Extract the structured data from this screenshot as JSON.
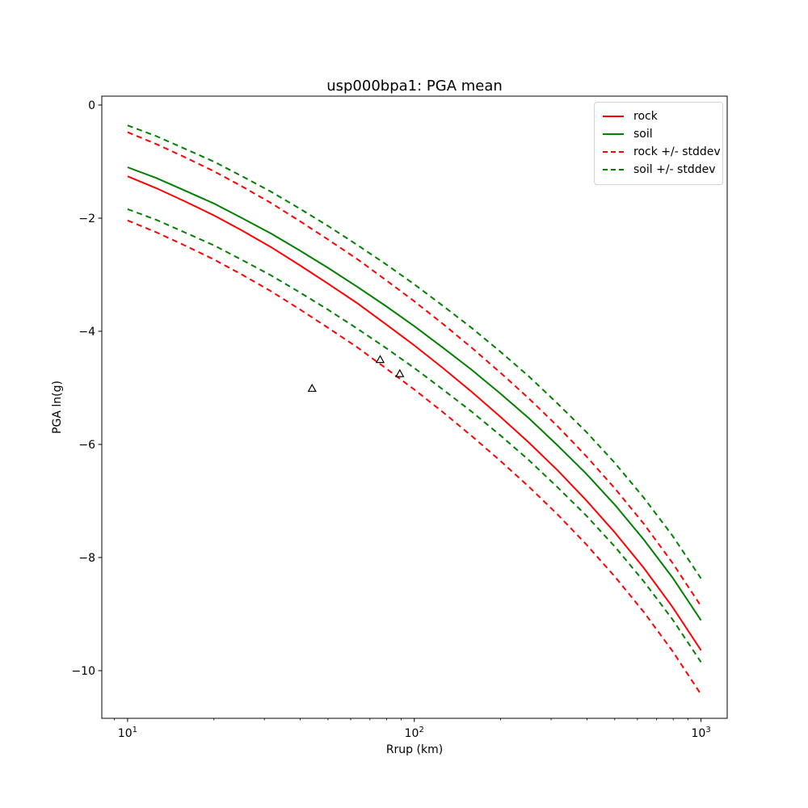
{
  "figure": {
    "title": "usp000bpa1: PGA mean",
    "xlabel": "Rrup (km)",
    "ylabel": "PGA ln(g)",
    "background": "#ffffff"
  },
  "chart_data": {
    "type": "line",
    "xscale": "log",
    "grid": false,
    "xlim": [
      8.13,
      1234
    ],
    "ylim": [
      0.157,
      -10.843
    ],
    "xticks": [
      10,
      100,
      1000
    ],
    "yticks": [
      0,
      -2,
      -4,
      -6,
      -8,
      -10
    ],
    "x": [
      10,
      12.6,
      15.8,
      20,
      25.1,
      31.6,
      39.8,
      50.1,
      63.1,
      79.4,
      100,
      125.9,
      158.5,
      199.5,
      251.2,
      316.2,
      398.1,
      501.2,
      631,
      794.3,
      1000
    ],
    "series": [
      {
        "name": "rock",
        "color": "#ff0000",
        "style": "solid",
        "values": [
          -1.26,
          -1.47,
          -1.7,
          -1.95,
          -2.22,
          -2.51,
          -2.83,
          -3.16,
          -3.5,
          -3.87,
          -4.25,
          -4.65,
          -5.07,
          -5.51,
          -5.97,
          -6.46,
          -6.99,
          -7.56,
          -8.18,
          -8.87,
          -9.64
        ]
      },
      {
        "name": "soil",
        "color": "#008000",
        "style": "solid",
        "values": [
          -1.1,
          -1.29,
          -1.51,
          -1.74,
          -2.0,
          -2.27,
          -2.57,
          -2.88,
          -3.21,
          -3.55,
          -3.91,
          -4.29,
          -4.68,
          -5.1,
          -5.54,
          -6.02,
          -6.52,
          -7.07,
          -7.68,
          -8.35,
          -9.11
        ]
      },
      {
        "name": "rock + stddev",
        "color": "#ff0000",
        "style": "dashed",
        "values": [
          -0.48,
          -0.69,
          -0.92,
          -1.17,
          -1.44,
          -1.73,
          -2.05,
          -2.38,
          -2.72,
          -3.09,
          -3.47,
          -3.87,
          -4.29,
          -4.73,
          -5.19,
          -5.68,
          -6.21,
          -6.78,
          -7.4,
          -8.09,
          -8.86
        ]
      },
      {
        "name": "rock - stddev",
        "color": "#ff0000",
        "style": "dashed",
        "values": [
          -2.04,
          -2.25,
          -2.48,
          -2.73,
          -3.0,
          -3.29,
          -3.61,
          -3.94,
          -4.28,
          -4.65,
          -5.03,
          -5.43,
          -5.85,
          -6.29,
          -6.75,
          -7.24,
          -7.77,
          -8.34,
          -8.96,
          -9.65,
          -10.42
        ]
      },
      {
        "name": "soil + stddev",
        "color": "#008000",
        "style": "dashed",
        "values": [
          -0.36,
          -0.55,
          -0.77,
          -1.0,
          -1.26,
          -1.53,
          -1.83,
          -2.14,
          -2.47,
          -2.81,
          -3.17,
          -3.55,
          -3.94,
          -4.36,
          -4.8,
          -5.28,
          -5.78,
          -6.33,
          -6.94,
          -7.61,
          -8.37
        ]
      },
      {
        "name": "soil - stddev",
        "color": "#008000",
        "style": "dashed",
        "values": [
          -1.84,
          -2.03,
          -2.25,
          -2.48,
          -2.74,
          -3.01,
          -3.31,
          -3.62,
          -3.95,
          -4.29,
          -4.65,
          -5.03,
          -5.42,
          -5.84,
          -6.28,
          -6.76,
          -7.26,
          -7.81,
          -8.42,
          -9.09,
          -9.85
        ]
      }
    ],
    "scatter": {
      "marker": "triangle-open",
      "edge_color": "#000000",
      "fill_color": "#ffffff",
      "points": [
        [
          44,
          -5.01
        ],
        [
          76,
          -4.5
        ],
        [
          89,
          -4.75
        ]
      ]
    },
    "legend": {
      "position": "upper right",
      "items": [
        {
          "label": "rock",
          "color": "#ff0000",
          "style": "solid"
        },
        {
          "label": "soil",
          "color": "#008000",
          "style": "solid"
        },
        {
          "label": "rock +/- stddev",
          "color": "#ff0000",
          "style": "dashed"
        },
        {
          "label": "soil +/- stddev",
          "color": "#008000",
          "style": "dashed"
        }
      ]
    }
  }
}
